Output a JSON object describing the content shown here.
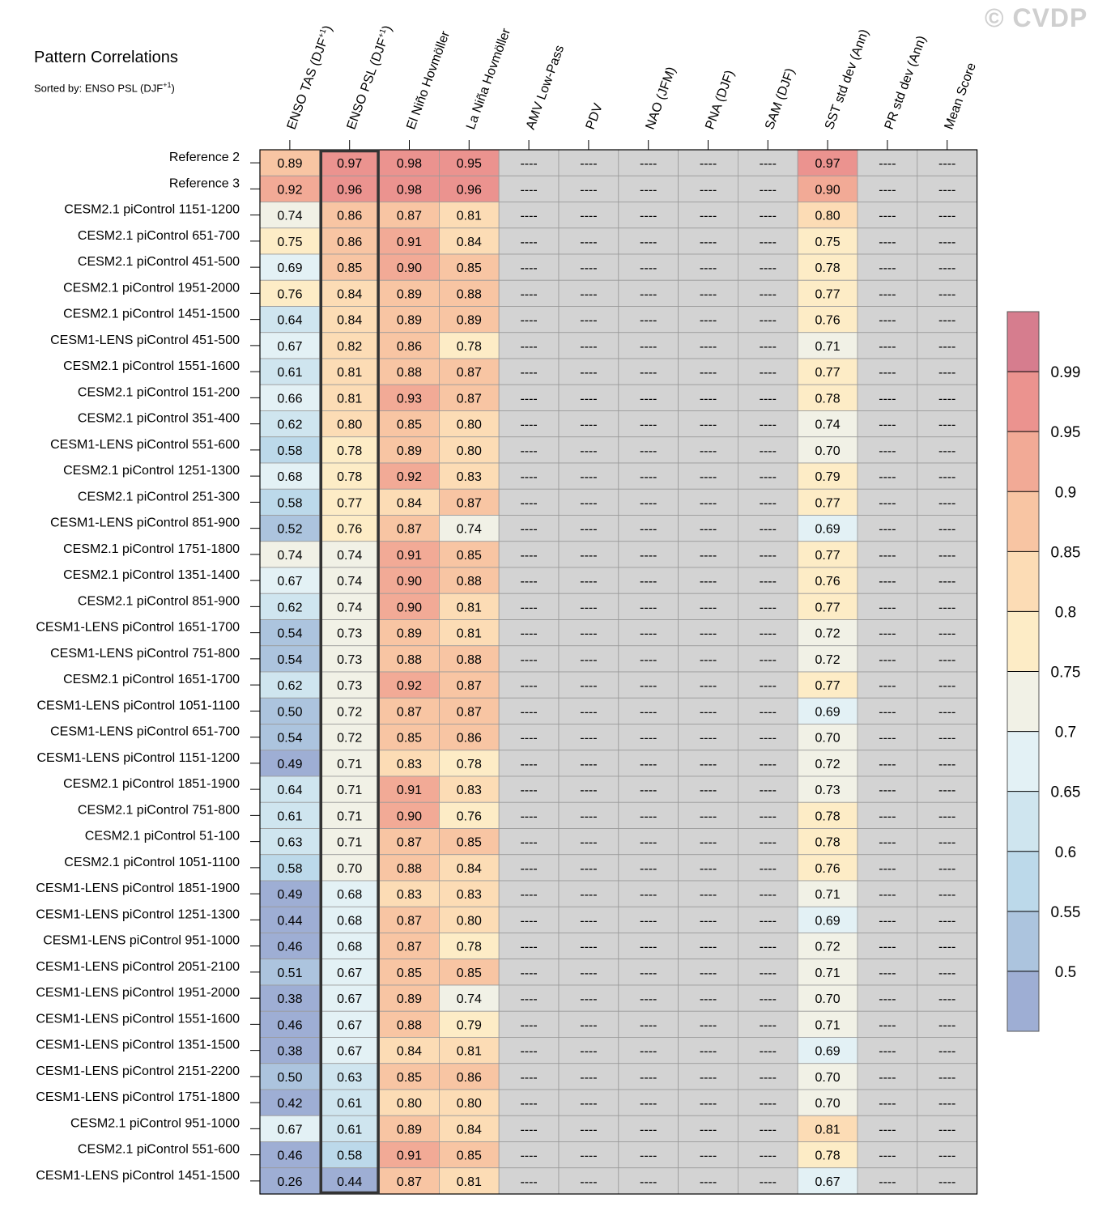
{
  "header": {
    "title": "Pattern Correlations",
    "subtitle_prefix": "Sorted by: ENSO PSL (DJF",
    "subtitle_sup": "+1",
    "subtitle_suffix": ")",
    "watermark": "© CVDP"
  },
  "chart_data": {
    "type": "heatmap",
    "title": "Pattern Correlations",
    "sorted_by": "ENSO PSL (DJF+1)",
    "missing_symbol": "----",
    "highlight_column": 1,
    "columns": [
      {
        "label": "ENSO TAS (DJF",
        "sup": "+1",
        "suffix": ")"
      },
      {
        "label": "ENSO PSL (DJF",
        "sup": "+1",
        "suffix": ")"
      },
      {
        "label": "El Niño Hovmöller",
        "sup": "",
        "suffix": ""
      },
      {
        "label": "La Niña Hovmöller",
        "sup": "",
        "suffix": ""
      },
      {
        "label": "AMV Low-Pass",
        "sup": "",
        "suffix": ""
      },
      {
        "label": "PDV",
        "sup": "",
        "suffix": ""
      },
      {
        "label": "NAO (JFM)",
        "sup": "",
        "suffix": ""
      },
      {
        "label": "PNA (DJF)",
        "sup": "",
        "suffix": ""
      },
      {
        "label": "SAM (DJF)",
        "sup": "",
        "suffix": ""
      },
      {
        "label": "SST std dev (Ann)",
        "sup": "",
        "suffix": ""
      },
      {
        "label": "PR std dev (Ann)",
        "sup": "",
        "suffix": ""
      },
      {
        "label": "Mean Score",
        "sup": "",
        "suffix": ""
      }
    ],
    "rows": [
      {
        "label": "Reference 2",
        "values": [
          0.89,
          0.97,
          0.98,
          0.95,
          null,
          null,
          null,
          null,
          null,
          0.97,
          null,
          null
        ]
      },
      {
        "label": "Reference 3",
        "values": [
          0.92,
          0.96,
          0.98,
          0.96,
          null,
          null,
          null,
          null,
          null,
          0.9,
          null,
          null
        ]
      },
      {
        "label": "CESM2.1 piControl 1151-1200",
        "values": [
          0.74,
          0.86,
          0.87,
          0.81,
          null,
          null,
          null,
          null,
          null,
          0.8,
          null,
          null
        ]
      },
      {
        "label": "CESM2.1 piControl 651-700",
        "values": [
          0.75,
          0.86,
          0.91,
          0.84,
          null,
          null,
          null,
          null,
          null,
          0.75,
          null,
          null
        ]
      },
      {
        "label": "CESM2.1 piControl 451-500",
        "values": [
          0.69,
          0.85,
          0.9,
          0.85,
          null,
          null,
          null,
          null,
          null,
          0.78,
          null,
          null
        ]
      },
      {
        "label": "CESM2.1 piControl 1951-2000",
        "values": [
          0.76,
          0.84,
          0.89,
          0.88,
          null,
          null,
          null,
          null,
          null,
          0.77,
          null,
          null
        ]
      },
      {
        "label": "CESM2.1 piControl 1451-1500",
        "values": [
          0.64,
          0.84,
          0.89,
          0.89,
          null,
          null,
          null,
          null,
          null,
          0.76,
          null,
          null
        ]
      },
      {
        "label": "CESM1-LENS piControl 451-500",
        "values": [
          0.67,
          0.82,
          0.86,
          0.78,
          null,
          null,
          null,
          null,
          null,
          0.71,
          null,
          null
        ]
      },
      {
        "label": "CESM2.1 piControl 1551-1600",
        "values": [
          0.61,
          0.81,
          0.88,
          0.87,
          null,
          null,
          null,
          null,
          null,
          0.77,
          null,
          null
        ]
      },
      {
        "label": "CESM2.1 piControl 151-200",
        "values": [
          0.66,
          0.81,
          0.93,
          0.87,
          null,
          null,
          null,
          null,
          null,
          0.78,
          null,
          null
        ]
      },
      {
        "label": "CESM2.1 piControl 351-400",
        "values": [
          0.62,
          0.8,
          0.85,
          0.8,
          null,
          null,
          null,
          null,
          null,
          0.74,
          null,
          null
        ]
      },
      {
        "label": "CESM1-LENS piControl 551-600",
        "values": [
          0.58,
          0.78,
          0.89,
          0.8,
          null,
          null,
          null,
          null,
          null,
          0.7,
          null,
          null
        ]
      },
      {
        "label": "CESM2.1 piControl 1251-1300",
        "values": [
          0.68,
          0.78,
          0.92,
          0.83,
          null,
          null,
          null,
          null,
          null,
          0.79,
          null,
          null
        ]
      },
      {
        "label": "CESM2.1 piControl 251-300",
        "values": [
          0.58,
          0.77,
          0.84,
          0.87,
          null,
          null,
          null,
          null,
          null,
          0.77,
          null,
          null
        ]
      },
      {
        "label": "CESM1-LENS piControl 851-900",
        "values": [
          0.52,
          0.76,
          0.87,
          0.74,
          null,
          null,
          null,
          null,
          null,
          0.69,
          null,
          null
        ]
      },
      {
        "label": "CESM2.1 piControl 1751-1800",
        "values": [
          0.74,
          0.74,
          0.91,
          0.85,
          null,
          null,
          null,
          null,
          null,
          0.77,
          null,
          null
        ]
      },
      {
        "label": "CESM2.1 piControl 1351-1400",
        "values": [
          0.67,
          0.74,
          0.9,
          0.88,
          null,
          null,
          null,
          null,
          null,
          0.76,
          null,
          null
        ]
      },
      {
        "label": "CESM2.1 piControl 851-900",
        "values": [
          0.62,
          0.74,
          0.9,
          0.81,
          null,
          null,
          null,
          null,
          null,
          0.77,
          null,
          null
        ]
      },
      {
        "label": "CESM1-LENS piControl 1651-1700",
        "values": [
          0.54,
          0.73,
          0.89,
          0.81,
          null,
          null,
          null,
          null,
          null,
          0.72,
          null,
          null
        ]
      },
      {
        "label": "CESM1-LENS piControl 751-800",
        "values": [
          0.54,
          0.73,
          0.88,
          0.88,
          null,
          null,
          null,
          null,
          null,
          0.72,
          null,
          null
        ]
      },
      {
        "label": "CESM2.1 piControl 1651-1700",
        "values": [
          0.62,
          0.73,
          0.92,
          0.87,
          null,
          null,
          null,
          null,
          null,
          0.77,
          null,
          null
        ]
      },
      {
        "label": "CESM1-LENS piControl 1051-1100",
        "values": [
          0.5,
          0.72,
          0.87,
          0.87,
          null,
          null,
          null,
          null,
          null,
          0.69,
          null,
          null
        ]
      },
      {
        "label": "CESM1-LENS piControl 651-700",
        "values": [
          0.54,
          0.72,
          0.85,
          0.86,
          null,
          null,
          null,
          null,
          null,
          0.7,
          null,
          null
        ]
      },
      {
        "label": "CESM1-LENS piControl 1151-1200",
        "values": [
          0.49,
          0.71,
          0.83,
          0.78,
          null,
          null,
          null,
          null,
          null,
          0.72,
          null,
          null
        ]
      },
      {
        "label": "CESM2.1 piControl 1851-1900",
        "values": [
          0.64,
          0.71,
          0.91,
          0.83,
          null,
          null,
          null,
          null,
          null,
          0.73,
          null,
          null
        ]
      },
      {
        "label": "CESM2.1 piControl 751-800",
        "values": [
          0.61,
          0.71,
          0.9,
          0.76,
          null,
          null,
          null,
          null,
          null,
          0.78,
          null,
          null
        ]
      },
      {
        "label": "CESM2.1 piControl 51-100",
        "values": [
          0.63,
          0.71,
          0.87,
          0.85,
          null,
          null,
          null,
          null,
          null,
          0.78,
          null,
          null
        ]
      },
      {
        "label": "CESM2.1 piControl 1051-1100",
        "values": [
          0.58,
          0.7,
          0.88,
          0.84,
          null,
          null,
          null,
          null,
          null,
          0.76,
          null,
          null
        ]
      },
      {
        "label": "CESM1-LENS piControl 1851-1900",
        "values": [
          0.49,
          0.68,
          0.83,
          0.83,
          null,
          null,
          null,
          null,
          null,
          0.71,
          null,
          null
        ]
      },
      {
        "label": "CESM1-LENS piControl 1251-1300",
        "values": [
          0.44,
          0.68,
          0.87,
          0.8,
          null,
          null,
          null,
          null,
          null,
          0.69,
          null,
          null
        ]
      },
      {
        "label": "CESM1-LENS piControl 951-1000",
        "values": [
          0.46,
          0.68,
          0.87,
          0.78,
          null,
          null,
          null,
          null,
          null,
          0.72,
          null,
          null
        ]
      },
      {
        "label": "CESM1-LENS piControl 2051-2100",
        "values": [
          0.51,
          0.67,
          0.85,
          0.85,
          null,
          null,
          null,
          null,
          null,
          0.71,
          null,
          null
        ]
      },
      {
        "label": "CESM1-LENS piControl 1951-2000",
        "values": [
          0.38,
          0.67,
          0.89,
          0.74,
          null,
          null,
          null,
          null,
          null,
          0.7,
          null,
          null
        ]
      },
      {
        "label": "CESM1-LENS piControl 1551-1600",
        "values": [
          0.46,
          0.67,
          0.88,
          0.79,
          null,
          null,
          null,
          null,
          null,
          0.71,
          null,
          null
        ]
      },
      {
        "label": "CESM1-LENS piControl 1351-1500",
        "values": [
          0.38,
          0.67,
          0.84,
          0.81,
          null,
          null,
          null,
          null,
          null,
          0.69,
          null,
          null
        ]
      },
      {
        "label": "CESM1-LENS piControl 2151-2200",
        "values": [
          0.5,
          0.63,
          0.85,
          0.86,
          null,
          null,
          null,
          null,
          null,
          0.7,
          null,
          null
        ]
      },
      {
        "label": "CESM1-LENS piControl 1751-1800",
        "values": [
          0.42,
          0.61,
          0.8,
          0.8,
          null,
          null,
          null,
          null,
          null,
          0.7,
          null,
          null
        ]
      },
      {
        "label": "CESM2.1 piControl 951-1000",
        "values": [
          0.67,
          0.61,
          0.89,
          0.84,
          null,
          null,
          null,
          null,
          null,
          0.81,
          null,
          null
        ]
      },
      {
        "label": "CESM2.1 piControl 551-600",
        "values": [
          0.46,
          0.58,
          0.91,
          0.85,
          null,
          null,
          null,
          null,
          null,
          0.78,
          null,
          null
        ]
      },
      {
        "label": "CESM1-LENS piControl 1451-1500",
        "values": [
          0.26,
          0.44,
          0.87,
          0.81,
          null,
          null,
          null,
          null,
          null,
          0.67,
          null,
          null
        ]
      }
    ],
    "colorbar": {
      "thresholds": [
        0.5,
        0.55,
        0.6,
        0.65,
        0.7,
        0.75,
        0.8,
        0.85,
        0.9,
        0.95,
        0.99
      ],
      "tick_labels": [
        "0.5",
        "0.55",
        "0.6",
        "0.65",
        "0.7",
        "0.75",
        "0.8",
        "0.85",
        "0.9",
        "0.95",
        "0.99"
      ],
      "colors": [
        "#9eaed4",
        "#acc4de",
        "#bcd9ea",
        "#cfe5ef",
        "#e3f1f5",
        "#f1f1e6",
        "#fdecc6",
        "#fcdcb5",
        "#f8c5a3",
        "#f2aa96",
        "#eb938f",
        "#d67d8e"
      ],
      "missing_color": "#d3d3d3"
    }
  }
}
